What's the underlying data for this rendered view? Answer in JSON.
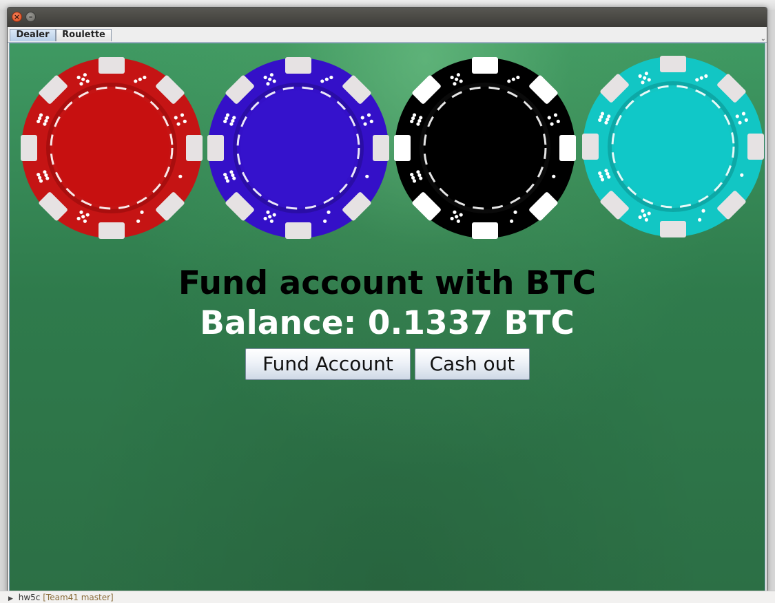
{
  "window": {
    "close_glyph": "×",
    "minimize_glyph": "–"
  },
  "tabs": [
    {
      "label": "Dealer",
      "selected": true
    },
    {
      "label": "Roulette",
      "selected": false
    }
  ],
  "chips": [
    {
      "name": "red-chip",
      "base": "#c51414",
      "inner": "#c71010",
      "ring": "#a80e0e",
      "spot": "#e6e2e3",
      "dot": "#ffffff"
    },
    {
      "name": "blue-chip",
      "base": "#3410c8",
      "inner": "#3512cc",
      "ring": "#2a0da6",
      "spot": "#e6e2e3",
      "dot": "#ffffff"
    },
    {
      "name": "black-chip",
      "base": "#000000",
      "inner": "#000000",
      "ring": "#0a0a0a",
      "spot": "#ffffff",
      "dot": "#ffffff"
    },
    {
      "name": "cyan-chip",
      "base": "#12c6c4",
      "inner": "#10c8c8",
      "ring": "#0da8a6",
      "spot": "#e6e2e3",
      "dot": "#ffffff"
    }
  ],
  "main": {
    "heading": "Fund account with BTC",
    "balance": "Balance: 0.1337 BTC",
    "fund_button": "Fund Account",
    "cashout_button": "Cash out"
  },
  "background": {
    "project_path": "hw5c",
    "branch": "[Team41 master]"
  }
}
